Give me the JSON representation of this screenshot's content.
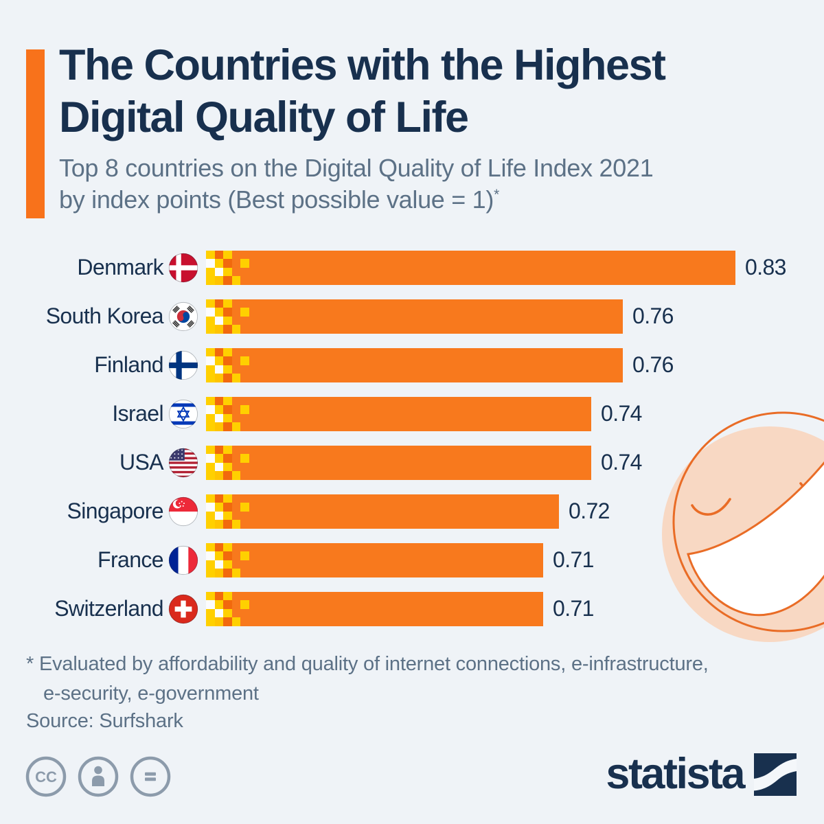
{
  "header": {
    "title_line1": "The Countries with the Highest",
    "title_line2": "Digital Quality of Life",
    "subtitle_line1": "Top 8 countries on the Digital Quality of Life Index 2021",
    "subtitle_line2": "by index points (Best possible value = 1)",
    "subtitle_asterisk": "*"
  },
  "chart_data": {
    "type": "bar",
    "orientation": "horizontal",
    "title": "Top 8 countries on the Digital Quality of Life Index 2021 by index points (Best possible value = 1)",
    "categories": [
      "Denmark",
      "South Korea",
      "Finland",
      "Israel",
      "USA",
      "Singapore",
      "France",
      "Switzerland"
    ],
    "values": [
      0.83,
      0.76,
      0.76,
      0.74,
      0.74,
      0.72,
      0.71,
      0.71
    ],
    "value_labels": [
      "0.83",
      "0.76",
      "0.76",
      "0.74",
      "0.74",
      "0.72",
      "0.71",
      "0.71"
    ],
    "flags": [
      "denmark",
      "south-korea",
      "finland",
      "israel",
      "usa",
      "singapore",
      "france",
      "switzerland"
    ],
    "best_possible_value": 1,
    "axis_min_visual": 0.5,
    "axis_max_visual": 0.83,
    "grid": false,
    "legend": false,
    "bar_color": "#F8791D"
  },
  "footnote": {
    "line1": "* Evaluated by affordability and quality of internet connections, e-infrastructure,",
    "line2": "e-security, e-government"
  },
  "source": {
    "text": "Source: Surfshark"
  },
  "footer": {
    "brand_wordmark": "statista"
  },
  "colors": {
    "background": "#EFF3F7",
    "navy": "#18304E",
    "subtitle_gray": "#5C7186",
    "orange": "#F8791D",
    "accent_bar": "#F8721B",
    "pixel_gold": "#FFD000",
    "pixel_gold_dark": "#FFC400",
    "pixel_orange_dark": "#F2690D",
    "pixel_white": "#FCFCFC",
    "smiley_fill": "#F8D8C3",
    "smiley_stroke": "#E96C26",
    "cc_gray": "#8C9BAB"
  }
}
